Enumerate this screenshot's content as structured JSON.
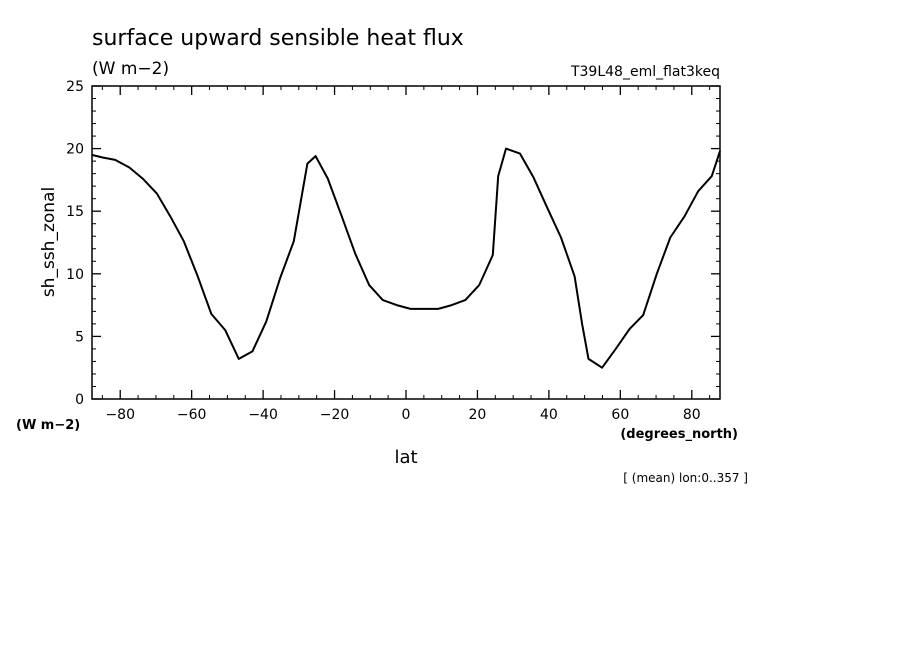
{
  "chart_data": {
    "type": "line",
    "title": "surface upward sensible heat flux",
    "title_units": "(W m−2)",
    "run_label": "T39L48_eml_flat3keq",
    "xlabel": "lat",
    "xunits": "(degrees_north)",
    "ylabel": "sh_ssh_zonal",
    "yunits": "(W m−2)",
    "footnote": "[ (mean) lon:0..357 ]",
    "xlim": [
      -87.9,
      87.9
    ],
    "ylim": [
      0,
      25
    ],
    "xticks": [
      -80,
      -60,
      -40,
      -20,
      0,
      20,
      40,
      60,
      80
    ],
    "xtick_labels": [
      "−80",
      "−60",
      "−40",
      "−20",
      "0",
      "20",
      "40",
      "60",
      "80"
    ],
    "yticks": [
      0,
      5,
      10,
      15,
      20,
      25
    ],
    "ytick_labels": [
      "0",
      "5",
      "10",
      "15",
      "20",
      "25"
    ],
    "grid": false,
    "series": [
      {
        "x": [
          -87.9,
          -85.1,
          -81.4,
          -77.5,
          -73.7,
          -69.7,
          -66.0,
          -62.2,
          -58.3,
          -54.5,
          -50.6,
          -46.8,
          -43.0,
          -39.1,
          -35.2,
          -31.4,
          -27.6,
          -25.3,
          -21.9,
          -18.0,
          -14.2,
          -10.3,
          -6.5,
          -2.6,
          1.3,
          5.1,
          9.0,
          12.8,
          16.6,
          20.5,
          24.3,
          25.8,
          28.0,
          31.9,
          35.7,
          39.5,
          43.4,
          47.2,
          49.3,
          51.1,
          54.9,
          58.7,
          62.6,
          66.4,
          70.2,
          74.0,
          78.0,
          81.8,
          85.6,
          87.9
        ],
        "values": [
          19.5,
          19.3,
          19.1,
          18.5,
          17.6,
          16.4,
          14.6,
          12.6,
          9.8,
          6.8,
          5.5,
          3.2,
          3.8,
          6.2,
          9.7,
          12.6,
          18.8,
          19.4,
          17.6,
          14.6,
          11.6,
          9.1,
          7.9,
          7.5,
          7.2,
          7.2,
          7.2,
          7.5,
          7.9,
          9.1,
          11.5,
          17.8,
          20.0,
          19.6,
          17.7,
          15.3,
          12.9,
          9.8,
          6.0,
          3.2,
          2.5,
          4.0,
          5.6,
          6.7,
          10.0,
          12.9,
          14.6,
          16.6,
          17.8,
          19.8
        ]
      }
    ]
  }
}
